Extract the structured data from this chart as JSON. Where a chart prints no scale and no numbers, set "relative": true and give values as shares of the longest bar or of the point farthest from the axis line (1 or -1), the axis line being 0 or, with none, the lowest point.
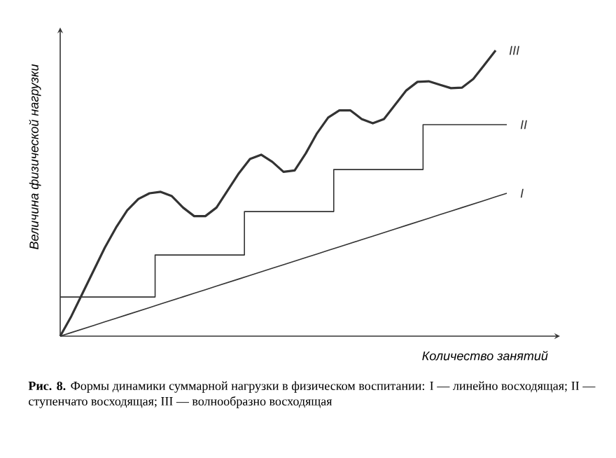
{
  "chart_data": {
    "type": "line",
    "relative": true,
    "xlabel": "Количество занятий",
    "ylabel": "Величина физической нагрузки",
    "annotations": [
      "**Рис. 8.** Формы динамики суммарной нагрузки в физическом воспитании: I — линейно восходящая; II — ступенчато восходящая; III — волнообразно восходящая"
    ],
    "categories": [
      null,
      null,
      null,
      null,
      null,
      null,
      null,
      null,
      null,
      null,
      null,
      null,
      null,
      null,
      null,
      null,
      null,
      null,
      null,
      null,
      null,
      null,
      null,
      null,
      null,
      null,
      null,
      null,
      null,
      null,
      null,
      null,
      null,
      null,
      null,
      null,
      null,
      null,
      null,
      null,
      null
    ],
    "series": [
      {
        "name": "I",
        "color": "#333333",
        "values": [
          0,
          0.0125,
          0.025,
          0.0375,
          0.05,
          0.0625,
          0.075,
          0.0875,
          0.1,
          0.1125,
          0.125,
          0.1375,
          0.15,
          0.1625,
          0.175,
          0.1875,
          0.2,
          0.2125,
          0.225,
          0.2375,
          0.25,
          0.2625,
          0.275,
          0.2875,
          0.3,
          0.3125,
          0.325,
          0.3375,
          0.35,
          0.3625,
          0.375,
          0.3875,
          0.4,
          0.4125,
          0.425,
          0.4375,
          0.45,
          0.4625,
          0.475,
          0.4875,
          0.5
        ]
      },
      {
        "name": "II",
        "type": "step",
        "color": "#333333",
        "values": [
          0.137,
          0.137,
          0.137,
          0.137,
          0.137,
          0.137,
          0.137,
          0.137,
          0.137,
          0.284,
          0.284,
          0.284,
          0.284,
          0.284,
          0.284,
          0.284,
          0.284,
          0.436,
          0.436,
          0.436,
          0.436,
          0.436,
          0.436,
          0.436,
          0.436,
          0.583,
          0.583,
          0.583,
          0.583,
          0.583,
          0.583,
          0.583,
          0.583,
          0.74,
          0.74,
          0.74,
          0.74,
          0.74,
          0.74,
          0.74,
          0.74
        ]
      },
      {
        "name": "III",
        "color": "#333333",
        "values": [
          0,
          0.07,
          0.15,
          0.23,
          0.31,
          0.38,
          0.44,
          0.48,
          0.5,
          0.505,
          0.49,
          0.45,
          0.42,
          0.42,
          0.45,
          0.51,
          0.57,
          0.62,
          0.635,
          0.61,
          0.575,
          0.58,
          0.64,
          0.71,
          0.765,
          0.79,
          0.79,
          0.76,
          0.745,
          0.76,
          0.81,
          0.86,
          0.89,
          0.892,
          0.88,
          0.868,
          0.87,
          0.9,
          0.95,
          1.0,
          null
        ]
      }
    ]
  }
}
